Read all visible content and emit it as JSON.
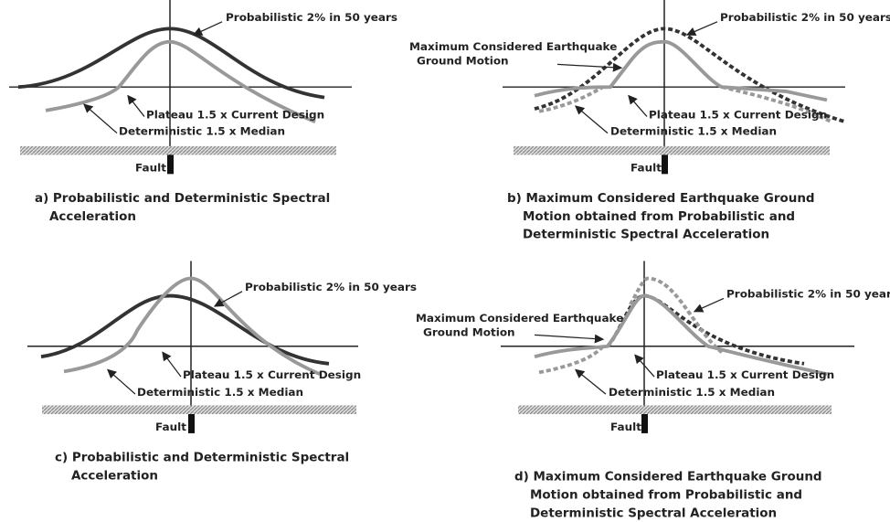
{
  "panels": [
    {
      "labels": {
        "probabilistic": "Probabilistic 2% in 50 years",
        "plateau": "Plateau 1.5 x Current Design",
        "deterministic": "Deterministic 1.5 x Median"
      },
      "fault": "Fault",
      "caption": [
        "a) Probabilistic and Deterministic Spectral",
        "Acceleration"
      ]
    },
    {
      "labels": {
        "mce": [
          "Maximum Considered Earthquake",
          "Ground Motion"
        ],
        "probabilistic": "Probabilistic 2% in 50 years",
        "plateau": "Plateau 1.5 x Current Design",
        "deterministic": "Deterministic 1.5 x Median"
      },
      "fault": "Fault",
      "caption": [
        "b) Maximum Considered Earthquake Ground",
        "Motion obtained from Probabilistic and",
        "Deterministic Spectral Acceleration"
      ]
    },
    {
      "labels": {
        "probabilistic": "Probabilistic 2% in 50 years",
        "plateau": "Plateau 1.5 x Current Design",
        "deterministic": "Deterministic 1.5 x Median"
      },
      "fault": "Fault",
      "caption": [
        "c) Probabilistic and Deterministic Spectral",
        "Acceleration"
      ]
    },
    {
      "labels": {
        "mce": [
          "Maximum Considered Earthquake",
          "Ground Motion"
        ],
        "probabilistic": "Probabilistic 2% in 50 years",
        "plateau": "Plateau 1.5 x Current Design",
        "deterministic": "Deterministic 1.5 x Median"
      },
      "fault": "Fault",
      "caption": [
        "d) Maximum Considered Earthquake Ground",
        "Motion obtained from Probabilistic and",
        "Deterministic Spectral Acceleration"
      ]
    }
  ]
}
